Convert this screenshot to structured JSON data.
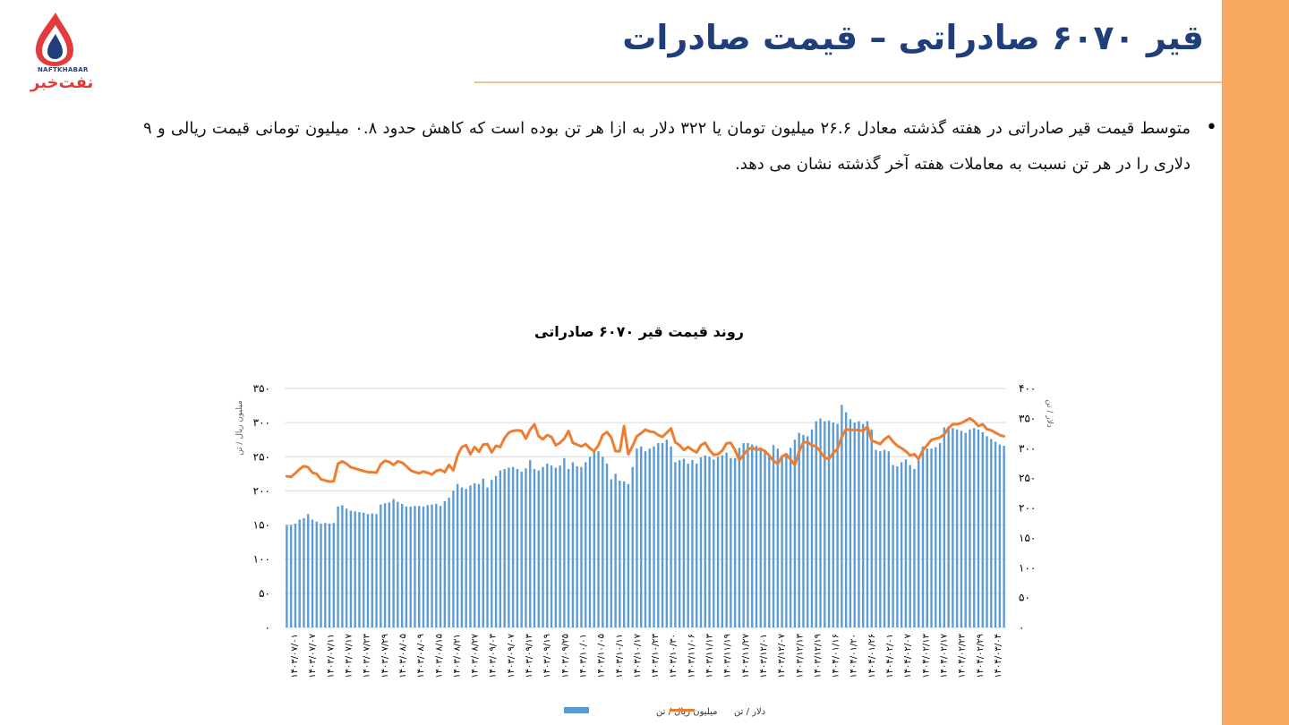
{
  "header": {
    "title": "قیر ۶۰۷۰ صادراتی – قیمت صادرات",
    "logo": {
      "latin": "NAFTKHABAR",
      "persian": "نفت‌خبر",
      "icon": "flame-drop-icon"
    }
  },
  "body": {
    "bullet": "متوسط قیمت قیر صادراتی در هفته گذشته معادل ۲۶.۶ میلیون تومان یا ۳۲۲ دلار به ازا هر تن بوده است که کاهش حدود ۰.۸ میلیون تومانی قیمت ریالی و ۹ دلاری را در هر تن نسبت به معاملات هفته آخر گذشته نشان می دهد."
  },
  "colors": {
    "accent_band": "#f9a960",
    "title": "#1f3e7a",
    "bars": "#5b9bd5",
    "line": "#ed7d31",
    "grid": "#d9d9d9"
  },
  "chart_data": {
    "type": "bar+line",
    "title": "روند قیمت قیر ۶۰۷۰ صادراتی",
    "ylabel_left": "میلیون ریال / تن",
    "ylabel_right": "دلار / تن",
    "ylim_left": [
      0,
      350
    ],
    "ylim_right": [
      0,
      400
    ],
    "yticks_left": [
      "۰",
      "۵۰",
      "۱۰۰",
      "۱۵۰",
      "۲۰۰",
      "۲۵۰",
      "۳۰۰",
      "۳۵۰"
    ],
    "yticks_right": [
      "۰",
      "۵۰",
      "۱۰۰",
      "۱۵۰",
      "۲۰۰",
      "۲۵۰",
      "۳۰۰",
      "۳۵۰",
      "۴۰۰"
    ],
    "x_labels": [
      "۱۴۰۳/۰۷/۰۱",
      "۱۴۰۳/۰۷/۰۷",
      "۱۴۰۳/۰۷/۱۱",
      "۱۴۰۳/۰۷/۱۷",
      "۱۴۰۳/۰۷/۲۳",
      "۱۴۰۳/۰۷/۲۹",
      "۱۴۰۳/۰۸/۰۵",
      "۱۴۰۳/۰۸/۰۹",
      "۱۴۰۳/۰۸/۱۵",
      "۱۴۰۳/۰۸/۲۱",
      "۱۴۰۳/۰۸/۲۷",
      "۱۴۰۳/۰۹/۰۳",
      "۱۴۰۳/۰۹/۰۷",
      "۱۴۰۳/۰۹/۱۳",
      "۱۴۰۳/۰۹/۱۹",
      "۱۴۰۳/۰۹/۲۵",
      "۱۴۰۳/۱۰/۰۱",
      "۱۴۰۳/۱۰/۰۵",
      "۱۴۰۳/۱۰/۱۱",
      "۱۴۰۳/۱۰/۱۷",
      "۱۴۰۳/۱۰/۲۳",
      "۱۴۰۳/۱۰/۳۰",
      "۱۴۰۳/۱۱/۰۶",
      "۱۴۰۳/۱۱/۱۳",
      "۱۴۰۳/۱۱/۱۹",
      "۱۴۰۳/۱۱/۲۷",
      "۱۴۰۳/۱۲/۰۱",
      "۱۴۰۳/۱۲/۰۷",
      "۱۴۰۳/۱۲/۱۳",
      "۱۴۰۳/۱۲/۱۹",
      "۱۴۰۴/۰۱/۱۶",
      "۱۴۰۴/۰۱/۲۰",
      "۱۴۰۴/۰۱/۲۶",
      "۱۴۰۴/۰۲/۰۱",
      "۱۴۰۴/۰۲/۰۷",
      "۱۴۰۴/۰۲/۱۳",
      "۱۴۰۴/۰۲/۱۷",
      "۱۴۰۴/۰۲/۲۳",
      "۱۴۰۴/۰۲/۲۹",
      "۱۴۰۴/۰۳/۰۴"
    ],
    "series": [
      {
        "name": "میلیون ریال / تن",
        "type": "bar",
        "axis": "left",
        "values": [
          150,
          150,
          152,
          158,
          160,
          166,
          158,
          155,
          152,
          153,
          152,
          153,
          177,
          179,
          174,
          171,
          170,
          169,
          168,
          166,
          167,
          166,
          180,
          182,
          183,
          188,
          184,
          181,
          177,
          177,
          178,
          178,
          177,
          179,
          180,
          181,
          178,
          185,
          190,
          200,
          210,
          205,
          203,
          208,
          211,
          210,
          218,
          205,
          216,
          222,
          230,
          232,
          234,
          235,
          232,
          228,
          233,
          245,
          232,
          230,
          235,
          240,
          237,
          234,
          237,
          248,
          232,
          242,
          236,
          235,
          242,
          250,
          258,
          258,
          250,
          240,
          217,
          225,
          215,
          214,
          210,
          235,
          262,
          265,
          258,
          262,
          265,
          270,
          270,
          275,
          265,
          242,
          245,
          247,
          240,
          245,
          240,
          249,
          252,
          250,
          246,
          250,
          252,
          256,
          248,
          248,
          263,
          270,
          270,
          268,
          266,
          262,
          260,
          253,
          267,
          262,
          250,
          255,
          263,
          275,
          285,
          282,
          280,
          290,
          302,
          306,
          302,
          303,
          300,
          298,
          326,
          315,
          305,
          300,
          302,
          298,
          302,
          290,
          260,
          258,
          260,
          258,
          238,
          236,
          242,
          246,
          238,
          232,
          245,
          265,
          262,
          262,
          264,
          270,
          293,
          292,
          292,
          290,
          288,
          285,
          290,
          292,
          290,
          286,
          280,
          276,
          272,
          268,
          266
        ]
      },
      {
        "name": "دلار / تن",
        "type": "line",
        "axis": "right",
        "values": [
          253,
          252,
          258,
          265,
          270,
          268,
          259,
          257,
          248,
          246,
          244,
          245,
          274,
          278,
          274,
          268,
          266,
          264,
          262,
          260,
          260,
          259,
          273,
          279,
          277,
          272,
          278,
          276,
          270,
          263,
          260,
          258,
          261,
          259,
          256,
          262,
          264,
          260,
          272,
          263,
          288,
          302,
          305,
          290,
          302,
          294,
          306,
          307,
          293,
          304,
          302,
          317,
          326,
          329,
          330,
          329,
          316,
          331,
          340,
          320,
          315,
          322,
          319,
          305,
          309,
          316,
          329,
          309,
          306,
          303,
          307,
          300,
          295,
          305,
          322,
          327,
          318,
          295,
          295,
          337,
          290,
          304,
          320,
          325,
          331,
          328,
          327,
          322,
          319,
          326,
          333,
          310,
          305,
          297,
          302,
          297,
          293,
          305,
          309,
          297,
          289,
          290,
          296,
          308,
          309,
          297,
          280,
          289,
          298,
          301,
          297,
          299,
          295,
          288,
          279,
          274,
          286,
          290,
          281,
          272,
          294,
          310,
          310,
          305,
          303,
          294,
          284,
          282,
          292,
          299,
          319,
          332,
          330,
          331,
          330,
          329,
          336,
          313,
          310,
          307,
          315,
          320,
          311,
          304,
          300,
          295,
          288,
          290,
          282,
          297,
          305,
          314,
          316,
          318,
          323,
          334,
          340,
          340,
          342,
          346,
          350,
          345,
          337,
          340,
          332,
          330,
          326,
          322,
          320
        ]
      }
    ],
    "legend": "bottom"
  }
}
